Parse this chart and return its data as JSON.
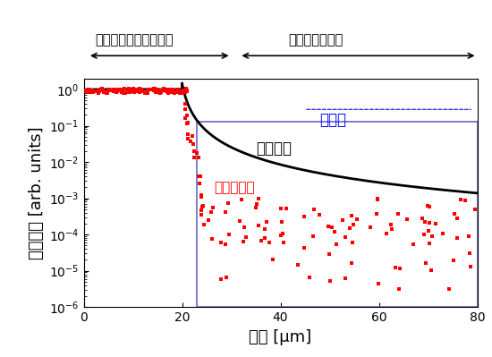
{
  "title_left": "水色蛍光タンパク溶液",
  "title_right": "スライドガラス",
  "ylabel": "信号強度 [arb. units]",
  "xlabel": "深さ [μm]",
  "xlim": [
    0,
    80
  ],
  "ylim": [
    1e-06,
    2.0
  ],
  "boundary_x": 23.0,
  "label_conventional": "従来手法",
  "label_spam": "スパムナム",
  "label_bg": "背景光",
  "bg_text_color": "blue",
  "conventional_color": "black",
  "spam_color": "red",
  "rect_edgecolor": "#6666cc",
  "xticks": [
    0,
    20,
    40,
    60,
    80
  ],
  "conv_start_x": 20.0,
  "conv_start_y": 1.0,
  "conv_end_y": 0.0022,
  "rect_top_y": 0.13
}
